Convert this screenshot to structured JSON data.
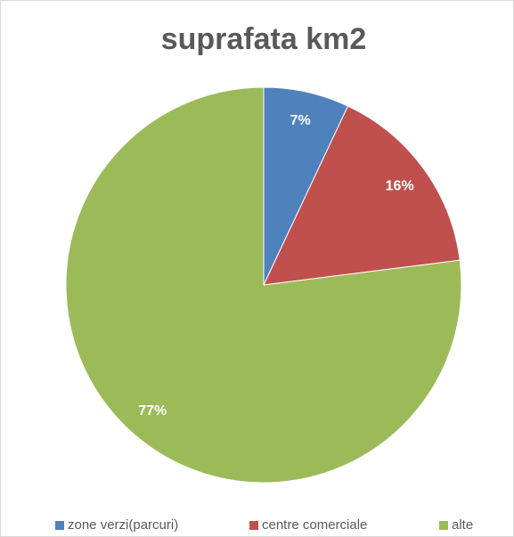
{
  "chart_data": {
    "type": "pie",
    "title": "suprafata km2",
    "categories": [
      "zone verzi(parcuri)",
      "centre comerciale",
      "alte"
    ],
    "values": [
      7,
      16,
      77
    ],
    "value_labels": [
      "7%",
      "16%",
      "77%"
    ],
    "colors": [
      "#4f81bd",
      "#c0504d",
      "#9bbb59"
    ],
    "legend": "bottom"
  }
}
